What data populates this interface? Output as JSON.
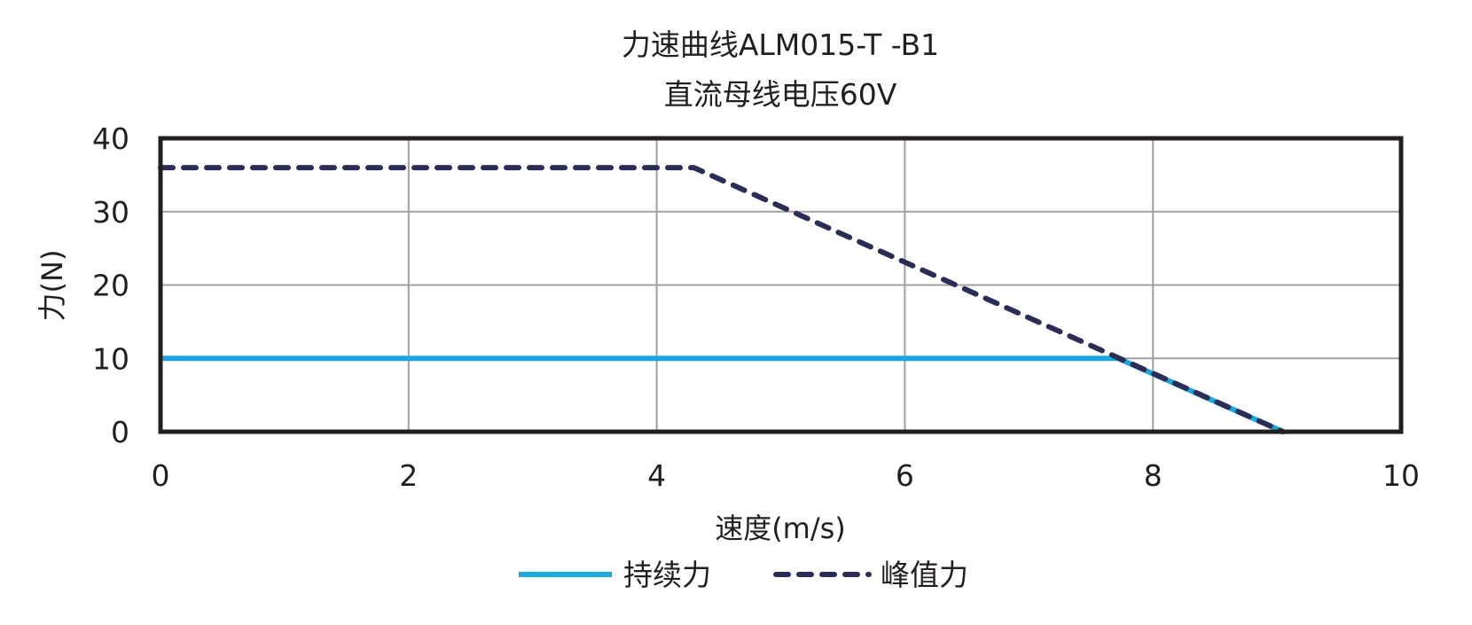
{
  "chart_data": {
    "type": "line",
    "title": "力速曲线ALM015-T -B1",
    "subtitle": "直流母线电压60V",
    "xlabel": "速度(m/s)",
    "ylabel": "力(N)",
    "xlim": [
      0,
      10
    ],
    "ylim": [
      0,
      40
    ],
    "xticks": [
      0,
      2,
      4,
      6,
      8,
      10
    ],
    "yticks": [
      0,
      10,
      20,
      30,
      40
    ],
    "grid": true,
    "legend_position": "bottom",
    "series": [
      {
        "name": "持续力",
        "style": "solid",
        "color": "#1ea7dc",
        "x": [
          0,
          7.72,
          9.05
        ],
        "y": [
          10,
          10,
          0
        ]
      },
      {
        "name": "峰值力",
        "style": "dashed",
        "color": "#2a2d55",
        "x": [
          0,
          4.3,
          9.05
        ],
        "y": [
          36,
          36,
          0
        ]
      }
    ]
  }
}
